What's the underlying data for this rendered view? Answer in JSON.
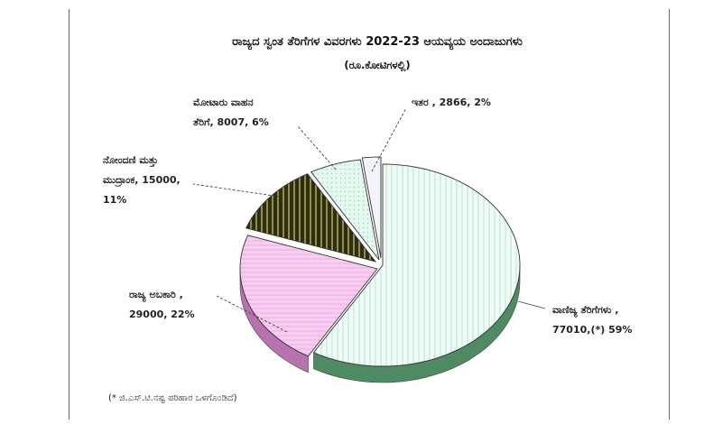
{
  "chart_data": {
    "type": "pie",
    "title": "ರಾಜ್ಯದ ಸ್ವಂತ ತೆರಿಗೆಗಳ ವಿವರಗಳು 2022-23 ಆಯವ್ಯಯ ಅಂದಾಜುಗಳು",
    "subtitle": "(ರೂ.ಕೋಟಿಗಳಲ್ಲಿ)",
    "note": "(* ಜಿ.ಎಸ್.ಟಿ.ನಷ್ಟ ಪರಿಹಾರ ಒಳಗೊಂಡಿದೆ)",
    "slices": [
      {
        "name": "ವಾಣಿಜ್ಯ ತೆರಿಗೆಗಳು",
        "value": 77010,
        "percent": 59,
        "label_lines": [
          "ವಾಣಿಜ್ಯ ತೆರಿಗೆಗಳು ,",
          "77010,(*) 59%"
        ],
        "color": "#e6faf4",
        "side": "#4e8a62"
      },
      {
        "name": "ರಾಜ್ಯ ಅಬಕಾರಿ",
        "value": 29000,
        "percent": 22,
        "label_lines": [
          "ರಾಜ್ಯ ಅಬಕಾರಿ ,",
          "29000, 22%"
        ],
        "color": "#f7c9f0",
        "side": "#b872b0"
      },
      {
        "name": "ನೋಂದಣಿ ಮತ್ತು ಮುದ್ರಾಂಕ",
        "value": 15000,
        "percent": 11,
        "label_lines": [
          "ನೋಂದಣಿ ಮತ್ತು",
          "ಮುದ್ರಾಂಕ, 15000,",
          "11%"
        ],
        "color": "#6b6b2f",
        "side": "#3c3c18"
      },
      {
        "name": "ಮೋಟಾರು ವಾಹನ ತೆರಿಗೆ",
        "value": 8007,
        "percent": 6,
        "label_lines": [
          "ಮೋಟಾರು ವಾಹನ",
          "ತೆರಿಗೆ, 8007, 6%"
        ],
        "color": "#dff7ee",
        "side": "#7fb79a"
      },
      {
        "name": "ಇತರ",
        "value": 2866,
        "percent": 2,
        "label_lines": [
          "ಇತರ , 2866, 2%"
        ],
        "color": "#f1f1f8",
        "side": "#9a9ab2"
      }
    ]
  }
}
